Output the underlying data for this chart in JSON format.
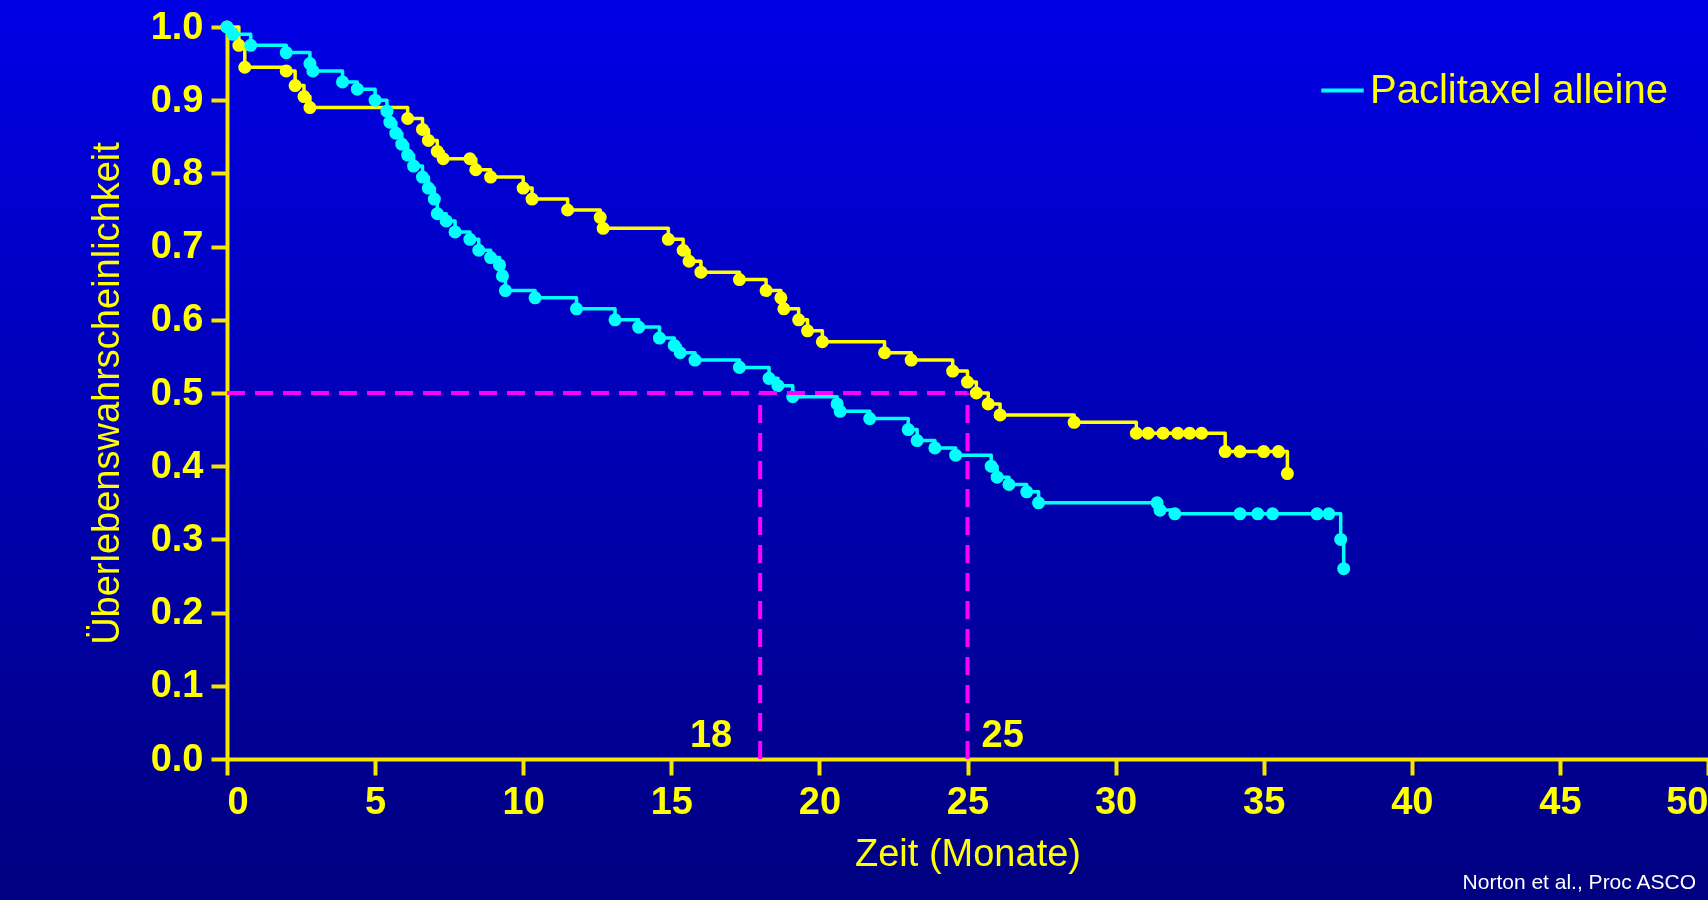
{
  "chart_data": {
    "type": "step",
    "xlabel": "Zeit (Monate)",
    "ylabel": "Überlebenswahrscheinlichkeit",
    "xlim": [
      0,
      50
    ],
    "xticks": [
      0,
      5,
      10,
      15,
      20,
      25,
      30,
      35,
      40,
      45,
      50
    ],
    "ylim": [
      0,
      1
    ],
    "yticks": [
      {
        "value": 0,
        "label": "0.0"
      },
      0.1,
      0.2,
      0.3,
      0.4,
      0.5,
      0.6,
      0.7,
      0.8,
      0.9,
      {
        "value": 1,
        "label": "1.0"
      }
    ],
    "grid": false,
    "legend": "top right",
    "marker": "circle",
    "line_style": "solid",
    "series": [
      {
        "color": "#ffff00",
        "x": [
          0,
          0.4,
          0.6,
          2.0,
          2.3,
          2.6,
          2.8,
          6.1,
          6.6,
          6.8,
          7.1,
          7.3,
          8.2,
          8.4,
          8.9,
          10.0,
          10.3,
          11.5,
          12.6,
          12.7,
          14.9,
          15.4,
          15.6,
          16.0,
          17.3,
          18.2,
          18.7,
          18.8,
          19.3,
          19.6,
          20.1,
          22.2,
          23.1,
          24.5,
          25.0,
          25.3,
          25.7,
          26.1,
          28.6,
          30.7,
          31.1,
          31.6,
          32.1,
          32.5,
          32.9,
          33.7,
          34.2,
          35.0,
          35.5,
          35.8
        ],
        "values": [
          1.0,
          0.975,
          0.945,
          0.94,
          0.92,
          0.905,
          0.89,
          0.875,
          0.86,
          0.845,
          0.83,
          0.82,
          0.82,
          0.805,
          0.795,
          0.78,
          0.765,
          0.75,
          0.74,
          0.725,
          0.71,
          0.695,
          0.68,
          0.665,
          0.655,
          0.64,
          0.63,
          0.615,
          0.6,
          0.585,
          0.57,
          0.555,
          0.545,
          0.53,
          0.515,
          0.5,
          0.485,
          0.47,
          0.46,
          0.445,
          0.445,
          0.445,
          0.445,
          0.445,
          0.445,
          0.42,
          0.42,
          0.42,
          0.42,
          0.39
        ]
      },
      {
        "name": "Paclitaxel alleine",
        "color": "#00ffff",
        "x": [
          0,
          0.2,
          0.8,
          2.0,
          2.8,
          2.9,
          3.9,
          4.4,
          5.0,
          5.4,
          5.5,
          5.7,
          5.9,
          6.1,
          6.3,
          6.6,
          6.8,
          7.0,
          7.1,
          7.4,
          7.7,
          8.2,
          8.5,
          8.9,
          9.2,
          9.3,
          9.4,
          10.4,
          11.8,
          13.1,
          13.9,
          14.6,
          15.1,
          15.3,
          15.8,
          17.3,
          18.3,
          18.6,
          19.1,
          20.6,
          20.7,
          21.7,
          23.0,
          23.3,
          23.9,
          24.6,
          25.8,
          26.0,
          26.4,
          27.0,
          27.4,
          31.4,
          31.5,
          32.0,
          34.2,
          34.8,
          35.3,
          36.8,
          37.2,
          37.6,
          37.7
        ],
        "values": [
          1.0,
          0.99,
          0.975,
          0.965,
          0.95,
          0.94,
          0.925,
          0.915,
          0.9,
          0.885,
          0.87,
          0.855,
          0.84,
          0.825,
          0.81,
          0.795,
          0.78,
          0.765,
          0.745,
          0.735,
          0.72,
          0.71,
          0.695,
          0.685,
          0.675,
          0.66,
          0.64,
          0.63,
          0.615,
          0.6,
          0.59,
          0.575,
          0.565,
          0.555,
          0.545,
          0.535,
          0.52,
          0.51,
          0.495,
          0.485,
          0.475,
          0.465,
          0.45,
          0.435,
          0.425,
          0.415,
          0.4,
          0.385,
          0.375,
          0.365,
          0.35,
          0.35,
          0.34,
          0.335,
          0.335,
          0.335,
          0.335,
          0.335,
          0.335,
          0.3,
          0.26
        ]
      }
    ],
    "ref_lines": [
      {
        "axis": "y",
        "value": 0.5,
        "color": "#ff00ff",
        "line_style": "dashed"
      },
      {
        "axis": "x",
        "value": 18,
        "label": "18",
        "color": "#ff00ff",
        "line_style": "dashed"
      },
      {
        "axis": "x",
        "value": 25,
        "label": "25",
        "color": "#ff00ff",
        "line_style": "dashed"
      }
    ],
    "annotations": [
      "Norton et al., Proc ASCO"
    ]
  }
}
